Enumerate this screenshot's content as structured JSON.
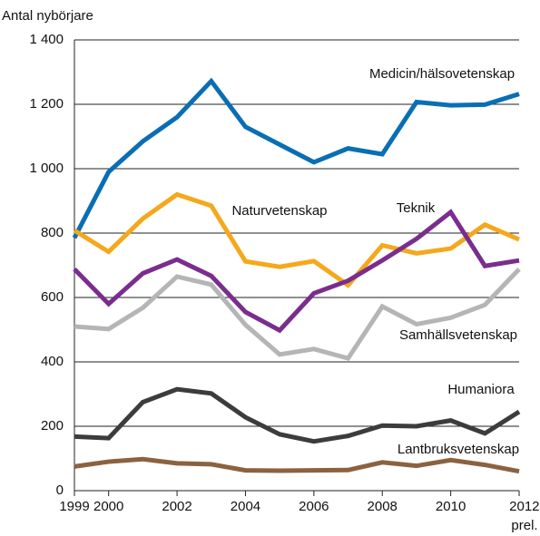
{
  "chart_data": {
    "type": "line",
    "y_axis_label": "Antal nybörjare",
    "x": [
      1999,
      2000,
      2001,
      2002,
      2003,
      2004,
      2005,
      2006,
      2007,
      2008,
      2009,
      2010,
      2011,
      2012
    ],
    "series": [
      {
        "name": "Medicin/hälsovetenskap",
        "color": "#0a6eb4",
        "values": [
          785,
          990,
          1085,
          1160,
          1272,
          1130,
          1075,
          1020,
          1063,
          1045,
          1207,
          1197,
          1199,
          1232
        ]
      },
      {
        "name": "Naturvetenskap",
        "color": "#f5a81c",
        "values": [
          808,
          742,
          845,
          920,
          885,
          712,
          695,
          713,
          638,
          762,
          737,
          752,
          826,
          780
        ]
      },
      {
        "name": "Teknik",
        "color": "#7b2d8e",
        "values": [
          688,
          580,
          675,
          718,
          667,
          555,
          498,
          613,
          652,
          715,
          782,
          865,
          698,
          715
        ]
      },
      {
        "name": "Samhällsvetenskap",
        "color": "#b5b5b8",
        "values": [
          510,
          502,
          568,
          665,
          640,
          515,
          423,
          440,
          411,
          572,
          517,
          537,
          577,
          688
        ]
      },
      {
        "name": "Humaniora",
        "color": "#3c3c3c",
        "values": [
          168,
          163,
          275,
          315,
          302,
          228,
          175,
          153,
          170,
          202,
          200,
          218,
          178,
          245
        ]
      },
      {
        "name": "Lantbruksvetenskap",
        "color": "#8b6240",
        "values": [
          75,
          90,
          98,
          85,
          82,
          63,
          62,
          63,
          64,
          88,
          77,
          95,
          80,
          60
        ]
      }
    ],
    "xlim": [
      1999,
      2012
    ],
    "xticks": [
      1999,
      2000,
      2002,
      2004,
      2006,
      2008,
      2010,
      {
        "value": 2012,
        "label": "2012, prel."
      }
    ],
    "ylim": [
      0,
      1400
    ],
    "yticks": [
      0,
      200,
      400,
      600,
      800,
      {
        "value": 1000,
        "label": "1 000"
      },
      {
        "value": 1200,
        "label": "1 200"
      },
      {
        "value": 1400,
        "label": "1 400"
      }
    ],
    "grid": true
  }
}
